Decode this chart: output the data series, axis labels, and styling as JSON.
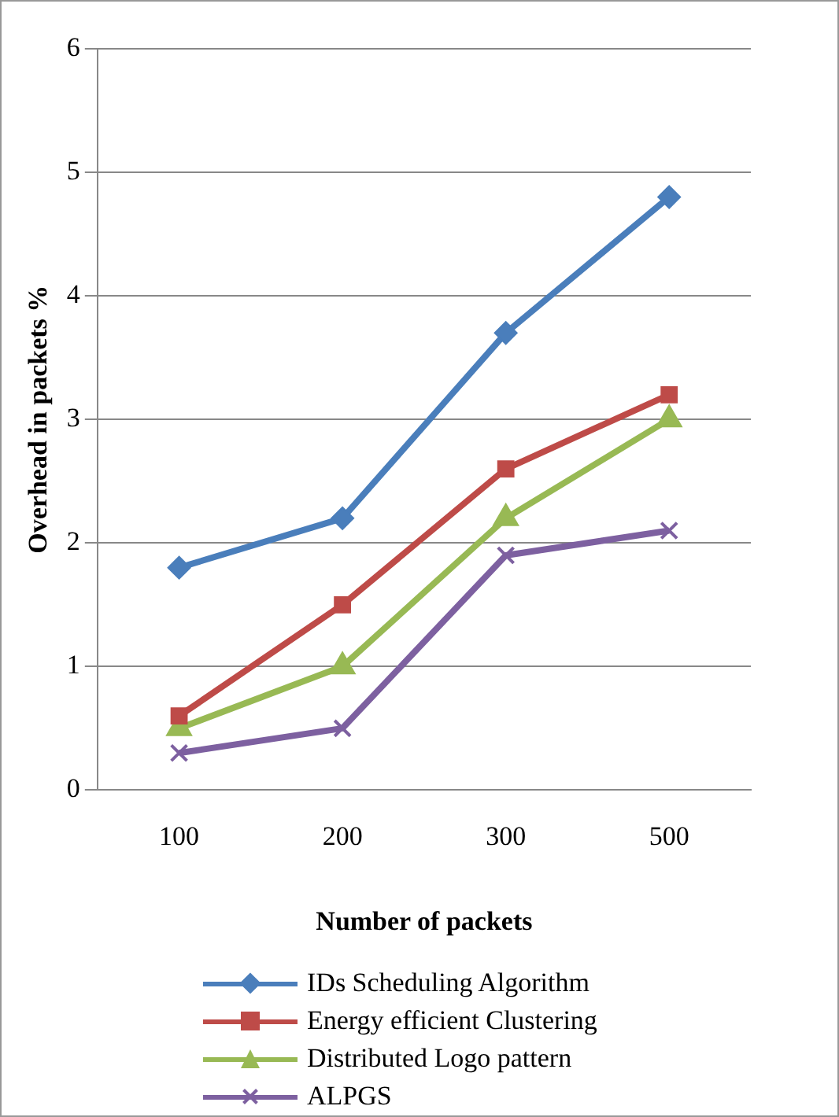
{
  "chart_data": {
    "type": "line",
    "xlabel": "Number of packets",
    "ylabel": "Overhead in packets %",
    "categories": [
      "100",
      "200",
      "300",
      "500"
    ],
    "ylim": [
      0,
      6
    ],
    "yticks": [
      0,
      1,
      2,
      3,
      4,
      5,
      6
    ],
    "grid": "y",
    "legend": "bottom",
    "line_style": "solid",
    "series": [
      {
        "name": "IDs Scheduling Algorithm",
        "color": "#4a7ebb",
        "marker": "diamond",
        "values": [
          1.8,
          2.2,
          3.7,
          4.8
        ]
      },
      {
        "name": "Energy efficient Clustering",
        "color": "#be4b48",
        "marker": "square",
        "values": [
          0.6,
          1.5,
          2.6,
          3.2
        ]
      },
      {
        "name": "Distributed Logo pattern",
        "color": "#98b954",
        "marker": "triangle",
        "values": [
          0.5,
          1.0,
          2.2,
          3.0
        ]
      },
      {
        "name": "ALPGS",
        "color": "#7d60a0",
        "marker": "cross",
        "values": [
          0.3,
          0.5,
          1.9,
          2.1
        ]
      }
    ]
  }
}
